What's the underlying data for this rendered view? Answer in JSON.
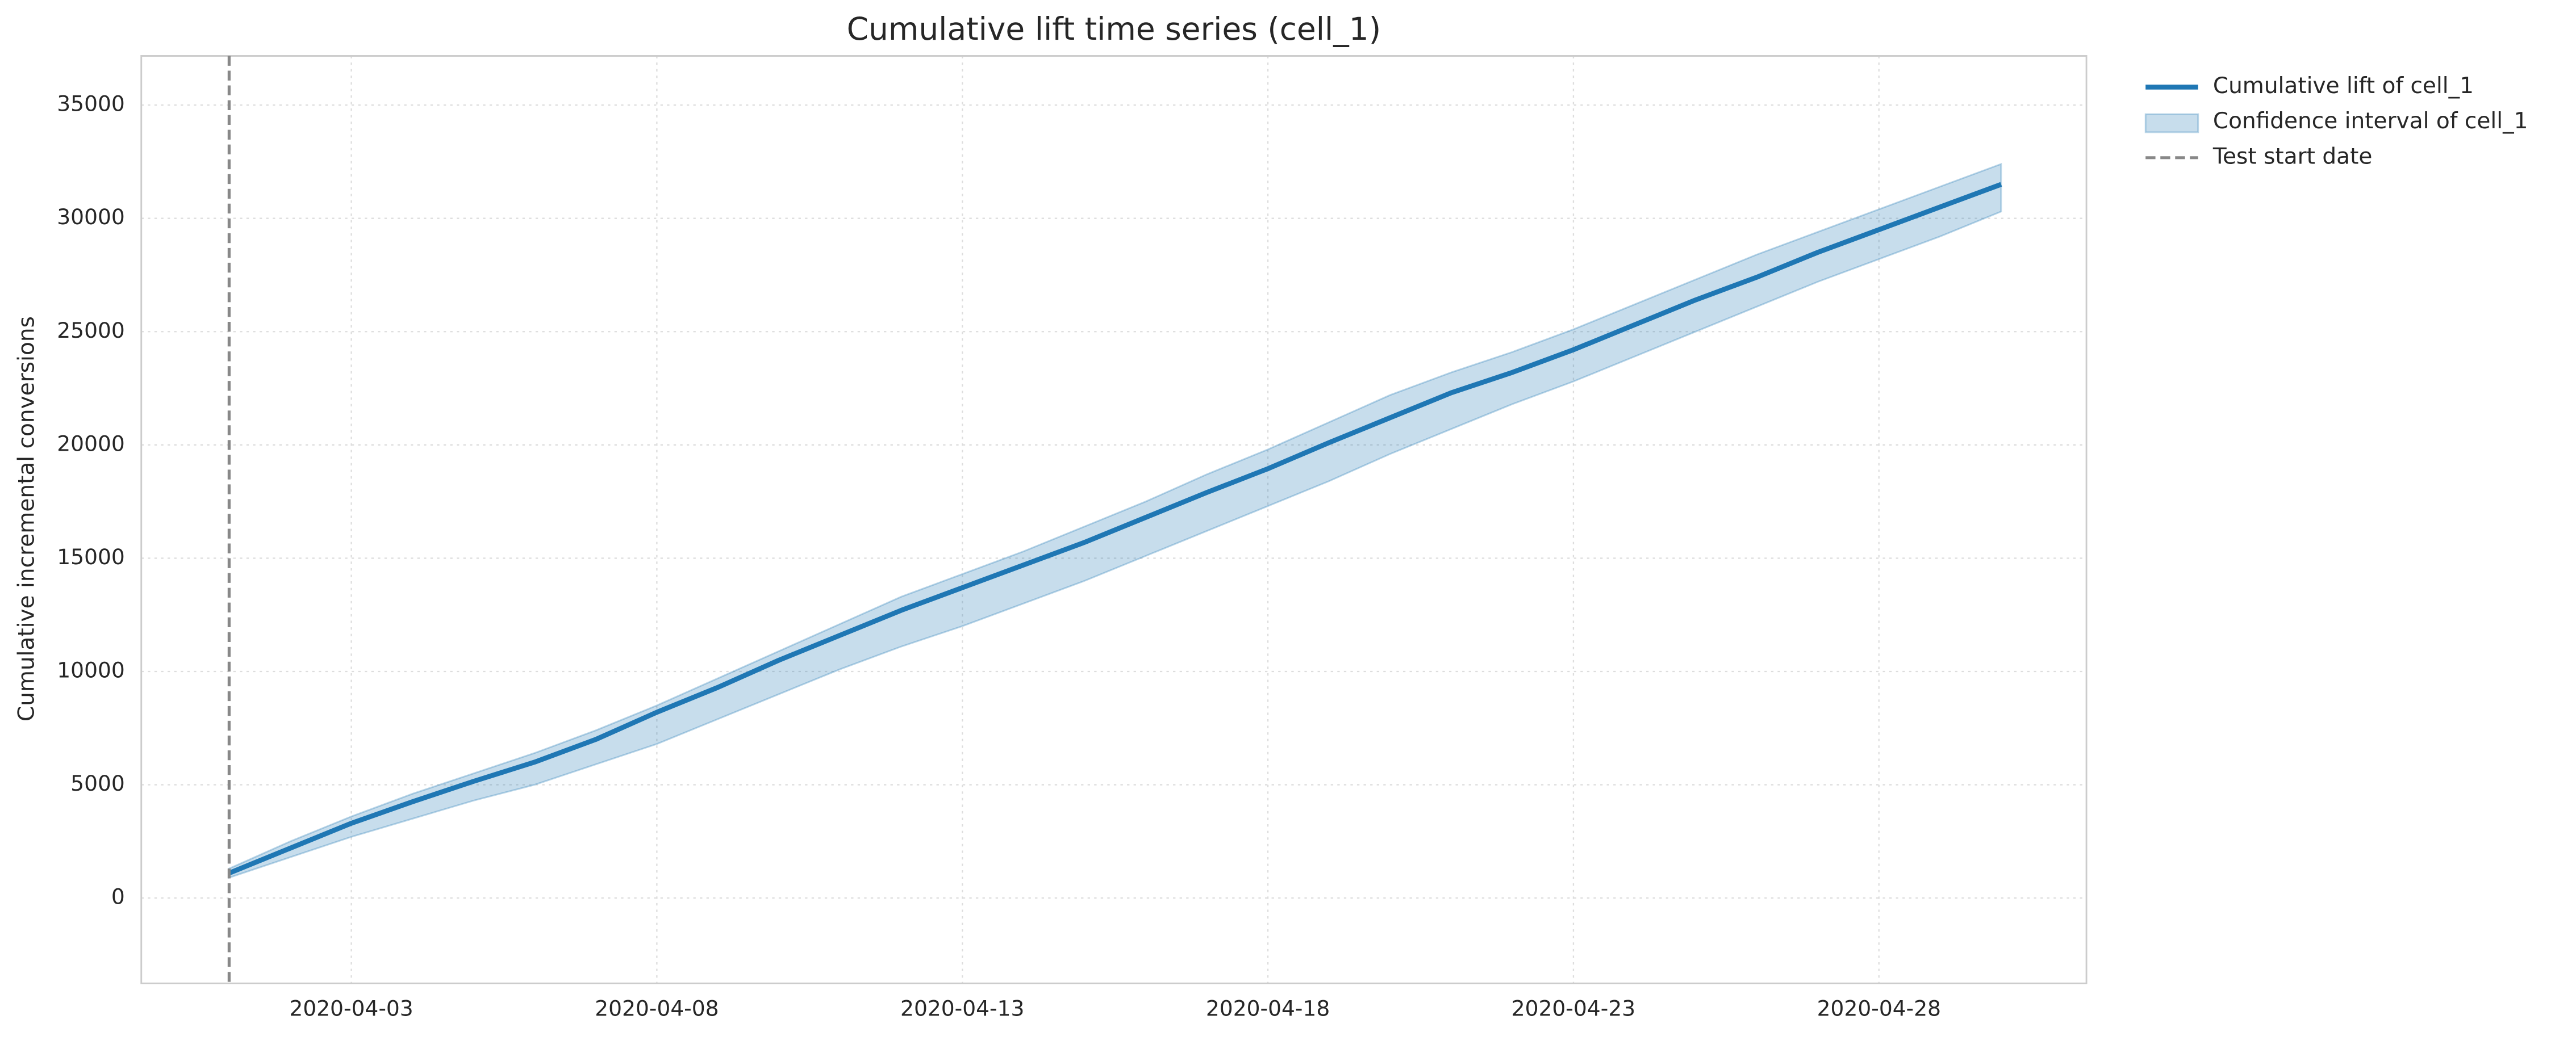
{
  "chart_data": {
    "type": "line",
    "title": "Cumulative lift time series (cell_1)",
    "ylabel": "Cumulative incremental conversions",
    "x": [
      "2020-04-01",
      "2020-04-02",
      "2020-04-03",
      "2020-04-04",
      "2020-04-05",
      "2020-04-06",
      "2020-04-07",
      "2020-04-08",
      "2020-04-09",
      "2020-04-10",
      "2020-04-11",
      "2020-04-12",
      "2020-04-13",
      "2020-04-14",
      "2020-04-15",
      "2020-04-16",
      "2020-04-17",
      "2020-04-18",
      "2020-04-19",
      "2020-04-20",
      "2020-04-21",
      "2020-04-22",
      "2020-04-23",
      "2020-04-24",
      "2020-04-25",
      "2020-04-26",
      "2020-04-27",
      "2020-04-28",
      "2020-04-29",
      "2020-04-30"
    ],
    "series": [
      {
        "name": "Cumulative lift of cell_1",
        "color": "#1f77b4",
        "values": [
          1100,
          2200,
          3300,
          4250,
          5150,
          6000,
          7000,
          8200,
          9300,
          10500,
          11600,
          12700,
          13700,
          14700,
          15700,
          16800,
          17900,
          18950,
          20100,
          21200,
          22300,
          23200,
          24200,
          25300,
          26400,
          27400,
          28500,
          29500,
          30500,
          31500
        ]
      }
    ],
    "band": {
      "name": "Confidence interval of cell_1",
      "color": "#1f77b4",
      "lower": [
        900,
        1800,
        2700,
        3500,
        4300,
        5000,
        5900,
        6800,
        7900,
        9000,
        10100,
        11100,
        12000,
        13000,
        14000,
        15100,
        16200,
        17300,
        18400,
        19600,
        20700,
        21800,
        22800,
        23900,
        25000,
        26100,
        27200,
        28200,
        29200,
        30300
      ],
      "upper": [
        1300,
        2500,
        3600,
        4600,
        5500,
        6400,
        7400,
        8500,
        9700,
        10900,
        12100,
        13300,
        14300,
        15300,
        16400,
        17500,
        18700,
        19800,
        21000,
        22200,
        23200,
        24100,
        25100,
        26200,
        27300,
        28400,
        29400,
        30400,
        31400,
        32400
      ]
    },
    "vline": {
      "name": "Test start date",
      "x": "2020-04-01",
      "color": "#888888"
    },
    "xlim": [
      "2020-03-30T13:30",
      "2020-05-01T09:30"
    ],
    "ylim": [
      -3770,
      37170
    ],
    "xticks": [
      "2020-04-03",
      "2020-04-08",
      "2020-04-13",
      "2020-04-18",
      "2020-04-23",
      "2020-04-28"
    ],
    "yticks": [
      0,
      5000,
      10000,
      15000,
      20000,
      25000,
      30000,
      35000
    ],
    "grid": true,
    "legend": "outside upper right"
  }
}
